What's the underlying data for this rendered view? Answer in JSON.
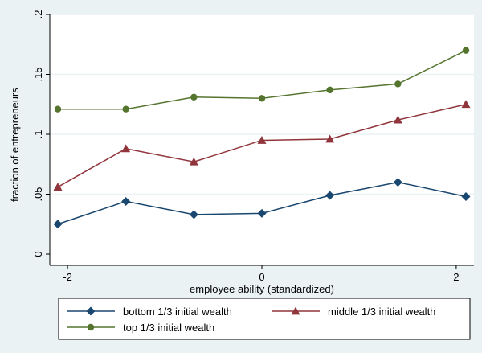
{
  "chart_data": {
    "type": "line",
    "xlabel": "employee ability (standardized)",
    "ylabel": "fraction of entrepreneurs",
    "xlim": [
      -2.1,
      2.1
    ],
    "ylim": [
      0,
      0.2
    ],
    "xticks": [
      -2,
      0,
      2
    ],
    "xtick_labels": [
      "-2",
      "0",
      "2"
    ],
    "yticks": [
      0,
      0.05,
      0.1,
      0.15,
      0.2
    ],
    "ytick_labels": [
      "0",
      ".05",
      ".1",
      ".15",
      ".2"
    ],
    "grid": "horizontal",
    "legend_position": "bottom",
    "x": [
      -2.1,
      -1.4,
      -0.7,
      0,
      0.7,
      1.4,
      2.1
    ],
    "series": [
      {
        "name": "bottom 1/3 initial wealth",
        "color": "#1a476f",
        "marker": "diamond",
        "values": [
          0.025,
          0.044,
          0.033,
          0.034,
          0.049,
          0.06,
          0.048
        ]
      },
      {
        "name": "middle 1/3 initial wealth",
        "color": "#90353b",
        "marker": "triangle",
        "values": [
          0.056,
          0.088,
          0.077,
          0.095,
          0.096,
          0.112,
          0.125
        ]
      },
      {
        "name": "top 1/3 initial wealth",
        "color": "#55752f",
        "marker": "circle",
        "values": [
          0.121,
          0.121,
          0.131,
          0.13,
          0.137,
          0.142,
          0.17
        ]
      }
    ]
  }
}
